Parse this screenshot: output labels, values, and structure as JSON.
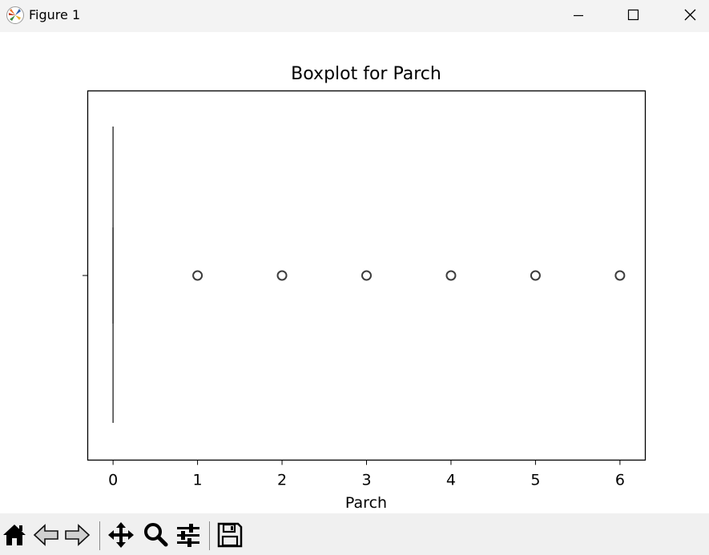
{
  "window": {
    "title": "Figure 1",
    "controls": [
      "minimize",
      "maximize",
      "close"
    ]
  },
  "toolbar": {
    "tools": [
      {
        "name": "home",
        "icon": "home-icon"
      },
      {
        "name": "back",
        "icon": "back-arrow-icon"
      },
      {
        "name": "forward",
        "icon": "forward-arrow-icon"
      },
      {
        "name": "pan",
        "icon": "move-icon"
      },
      {
        "name": "zoom",
        "icon": "magnifier-icon"
      },
      {
        "name": "configure",
        "icon": "sliders-icon"
      },
      {
        "name": "save",
        "icon": "floppy-disk-icon"
      }
    ]
  },
  "chart_data": {
    "type": "boxplot",
    "orientation": "horizontal",
    "title": "Boxplot for Parch",
    "xlabel": "Parch",
    "ylabel": "",
    "xlim": [
      -0.3,
      6.3
    ],
    "xticks": [
      0,
      1,
      2,
      3,
      4,
      5,
      6
    ],
    "box": {
      "q1": 0,
      "median": 0,
      "q3": 0,
      "whisker_low": 0,
      "whisker_high": 0
    },
    "outliers": [
      1,
      2,
      3,
      4,
      5,
      6
    ],
    "grid": false,
    "colors": {
      "line": "#3d3d3d",
      "axes": "#000000"
    }
  }
}
